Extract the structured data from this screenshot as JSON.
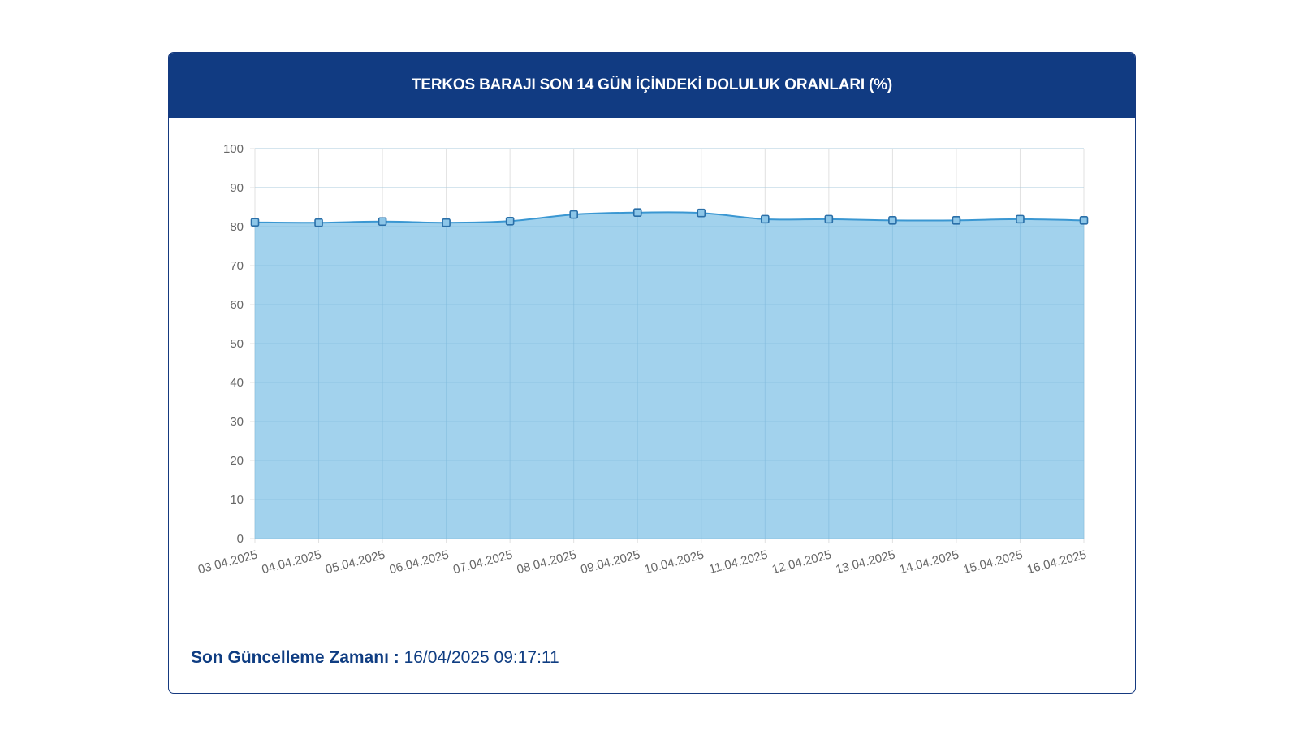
{
  "header": {
    "title": "TERKOS BARAJI SON 14 GÜN İÇİNDEKİ DOLULUK ORANLARI (%)"
  },
  "footer": {
    "label": "Son Güncelleme Zamanı :",
    "value": "16/04/2025 09:17:11"
  },
  "colors": {
    "header_bg": "#113b82",
    "line": "#3a97d2",
    "fill": "#9dd0ec",
    "grid": "#e1e1e1",
    "tick_text": "#666666"
  },
  "chart_data": {
    "type": "area",
    "title": "TERKOS BARAJI SON 14 GÜN İÇİNDEKİ DOLULUK ORANLARI (%)",
    "xlabel": "",
    "ylabel": "",
    "categories": [
      "03.04.2025",
      "04.04.2025",
      "05.04.2025",
      "06.04.2025",
      "07.04.2025",
      "08.04.2025",
      "09.04.2025",
      "10.04.2025",
      "11.04.2025",
      "12.04.2025",
      "13.04.2025",
      "14.04.2025",
      "15.04.2025",
      "16.04.2025"
    ],
    "values": [
      81.1,
      81.0,
      81.3,
      81.0,
      81.4,
      83.1,
      83.6,
      83.5,
      81.9,
      81.9,
      81.6,
      81.6,
      81.9,
      81.6
    ],
    "ylim": [
      0,
      100
    ],
    "yticks": [
      "0",
      "10",
      "20",
      "30",
      "40",
      "50",
      "60",
      "70",
      "80",
      "90",
      "100"
    ],
    "grid": true,
    "legend": "none"
  }
}
